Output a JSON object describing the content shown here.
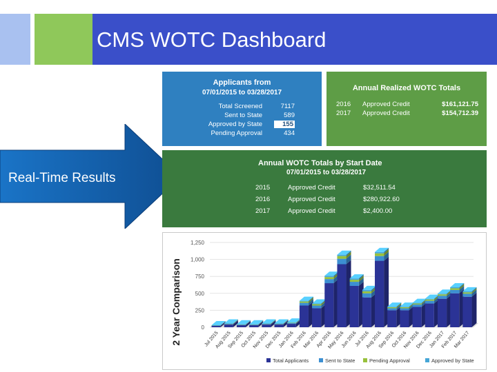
{
  "slide": {
    "title": "CMS WOTC Dashboard"
  },
  "arrow": {
    "label": "Real-Time Results"
  },
  "applicants_panel": {
    "title": "Applicants from",
    "date_range": "07/01/2015 to 03/28/2017",
    "rows": [
      {
        "label": "Total Screened",
        "value": "7117"
      },
      {
        "label": "Sent to State",
        "value": "589"
      },
      {
        "label": "Approved by State",
        "value": "155"
      },
      {
        "label": "Pending Approval",
        "value": "434"
      }
    ]
  },
  "annual_realized": {
    "title": "Annual Realized WOTC Totals",
    "rows": [
      {
        "year": "2016",
        "label": "Approved Credit",
        "amount": "$161,121.75"
      },
      {
        "year": "2017",
        "label": "Approved Credit",
        "amount": "$154,712.39"
      }
    ]
  },
  "start_date_totals": {
    "title": "Annual WOTC Totals by Start Date",
    "date_range": "07/01/2015 to 03/28/2017",
    "rows": [
      {
        "year": "2015",
        "label": "Approved Credit",
        "amount": "$32,511.54"
      },
      {
        "year": "2016",
        "label": "Approved Credit",
        "amount": "$280,922.60"
      },
      {
        "year": "2017",
        "label": "Approved Credit",
        "amount": "$2,400.00"
      }
    ]
  },
  "colors": {
    "title_bar": "#3a4fc9",
    "applicants_panel": "#2f80c0",
    "annual_panel": "#5e9d46",
    "start_panel": "#3a7a3e",
    "series_total": "#2b3396",
    "series_sent": "#3c8fd2",
    "series_pending": "#98c13c",
    "series_approved": "#46a6d6"
  },
  "chart_data": {
    "type": "bar",
    "stacked": true,
    "three_d": true,
    "ylabel": "2 Year Comparison",
    "ylim": [
      0,
      1250
    ],
    "yticks": [
      0,
      250,
      500,
      750,
      1000,
      1250
    ],
    "ytick_labels": [
      "0",
      "250",
      "500",
      "750",
      "1,000",
      "1,250"
    ],
    "grid": true,
    "legend_position": "bottom",
    "categories": [
      "Jul 2015",
      "Aug 2015",
      "Sep 2015",
      "Oct 2015",
      "Nov 2015",
      "Dec 2015",
      "Jan 2016",
      "Feb 2016",
      "Mar 2016",
      "Apr 2016",
      "May 2016",
      "Jun 2016",
      "Jul 2016",
      "Aug 2016",
      "Sep 2016",
      "Oct 2016",
      "Nov 2016",
      "Dec 2016",
      "Jan 2017",
      "Feb 2017",
      "Mar 2017"
    ],
    "series": [
      {
        "name": "Total Applicants",
        "color": "#2b3396",
        "values": [
          20,
          40,
          30,
          30,
          40,
          40,
          50,
          320,
          280,
          650,
          930,
          610,
          440,
          980,
          250,
          250,
          300,
          350,
          420,
          500,
          450
        ]
      },
      {
        "name": "Sent to State",
        "color": "#3c8fd2",
        "values": [
          5,
          8,
          6,
          6,
          8,
          8,
          10,
          40,
          40,
          60,
          80,
          60,
          60,
          70,
          30,
          30,
          35,
          40,
          45,
          50,
          45
        ]
      },
      {
        "name": "Pending Approval",
        "color": "#98c13c",
        "values": [
          3,
          5,
          4,
          4,
          5,
          5,
          6,
          20,
          20,
          30,
          40,
          30,
          30,
          40,
          15,
          15,
          15,
          20,
          20,
          25,
          20
        ]
      },
      {
        "name": "Approved by State",
        "color": "#46a6d6",
        "values": [
          2,
          3,
          3,
          3,
          3,
          3,
          4,
          10,
          10,
          20,
          20,
          20,
          20,
          20,
          8,
          8,
          10,
          10,
          10,
          15,
          15
        ]
      }
    ]
  }
}
